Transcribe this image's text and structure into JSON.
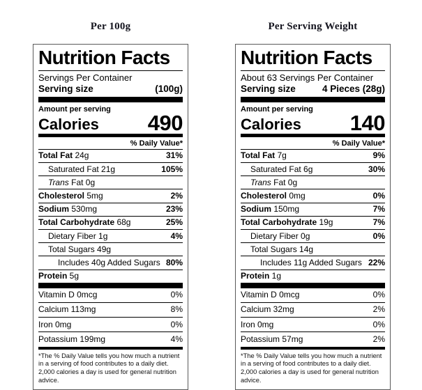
{
  "labels": [
    {
      "heading": "Per 100g",
      "title": "Nutrition Facts",
      "servings_per_container": "Servings Per Container",
      "serving_size_label": "Serving size",
      "serving_size_value": "(100g)",
      "amount_per_serving": "Amount per serving",
      "calories_label": "Calories",
      "calories_value": "490",
      "daily_value_header": "% Daily Value*",
      "rows": [
        {
          "bold": "Total Fat",
          "text": " 24g",
          "dv": "31%",
          "indent": 0
        },
        {
          "text": "Saturated Fat 21g",
          "dv": "105%",
          "indent": 1
        },
        {
          "italic": "Trans",
          "text": " Fat 0g",
          "dv": "",
          "indent": 1
        },
        {
          "bold": "Cholesterol",
          "text": " 5mg",
          "dv": "2%",
          "indent": 0
        },
        {
          "bold": "Sodium",
          "text": " 530mg",
          "dv": "23%",
          "indent": 0
        },
        {
          "bold": "Total Carbohydrate",
          "text": " 68g",
          "dv": "25%",
          "indent": 0
        },
        {
          "text": "Dietary Fiber 1g",
          "dv": "4%",
          "indent": 1
        },
        {
          "text": "Total Sugars 49g",
          "dv": "",
          "indent": 1
        },
        {
          "text": "Includes 40g Added Sugars",
          "dv": "80%",
          "indent": 2
        },
        {
          "bold": "Protein",
          "text": " 5g",
          "dv": "",
          "indent": 0
        }
      ],
      "vitamins": [
        {
          "text": "Vitamin D 0mcg",
          "dv": "0%",
          "indent": 0
        },
        {
          "text": "Calcium 113mg",
          "dv": "8%",
          "indent": 0
        },
        {
          "text": "Iron 0mg",
          "dv": "0%",
          "indent": 0
        },
        {
          "text": "Potassium 199mg",
          "dv": "4%",
          "indent": 0
        }
      ],
      "footnote": "*The % Daily Value tells you how much a nutrient in a serving of food contributes to a daily diet. 2,000 calories a day is used for general nutrition advice."
    },
    {
      "heading": "Per Serving Weight",
      "title": "Nutrition Facts",
      "servings_per_container": "About 63 Servings Per Container",
      "serving_size_label": "Serving size",
      "serving_size_value": "4 Pieces (28g)",
      "amount_per_serving": "Amount per serving",
      "calories_label": "Calories",
      "calories_value": "140",
      "daily_value_header": "% Daily Value*",
      "rows": [
        {
          "bold": "Total Fat",
          "text": " 7g",
          "dv": "9%",
          "indent": 0
        },
        {
          "text": "Saturated Fat 6g",
          "dv": "30%",
          "indent": 1
        },
        {
          "italic": "Trans",
          "text": " Fat 0g",
          "dv": "",
          "indent": 1
        },
        {
          "bold": "Cholesterol",
          "text": " 0mg",
          "dv": "0%",
          "indent": 0
        },
        {
          "bold": "Sodium",
          "text": " 150mg",
          "dv": "7%",
          "indent": 0
        },
        {
          "bold": "Total Carbohydrate",
          "text": " 19g",
          "dv": "7%",
          "indent": 0
        },
        {
          "text": "Dietary Fiber 0g",
          "dv": "0%",
          "indent": 1
        },
        {
          "text": "Total Sugars 14g",
          "dv": "",
          "indent": 1
        },
        {
          "text": "Includes 11g Added Sugars",
          "dv": "22%",
          "indent": 2
        },
        {
          "bold": "Protein",
          "text": " 1g",
          "dv": "",
          "indent": 0
        }
      ],
      "vitamins": [
        {
          "text": "Vitamin D 0mcg",
          "dv": "0%",
          "indent": 0
        },
        {
          "text": "Calcium 32mg",
          "dv": "2%",
          "indent": 0
        },
        {
          "text": "Iron 0mg",
          "dv": "0%",
          "indent": 0
        },
        {
          "text": "Potassium 57mg",
          "dv": "2%",
          "indent": 0
        }
      ],
      "footnote": "*The % Daily Value tells you how much a nutrient in a serving of food contributes to a daily diet. 2,000 calories a day is used for general nutrition advice."
    }
  ]
}
